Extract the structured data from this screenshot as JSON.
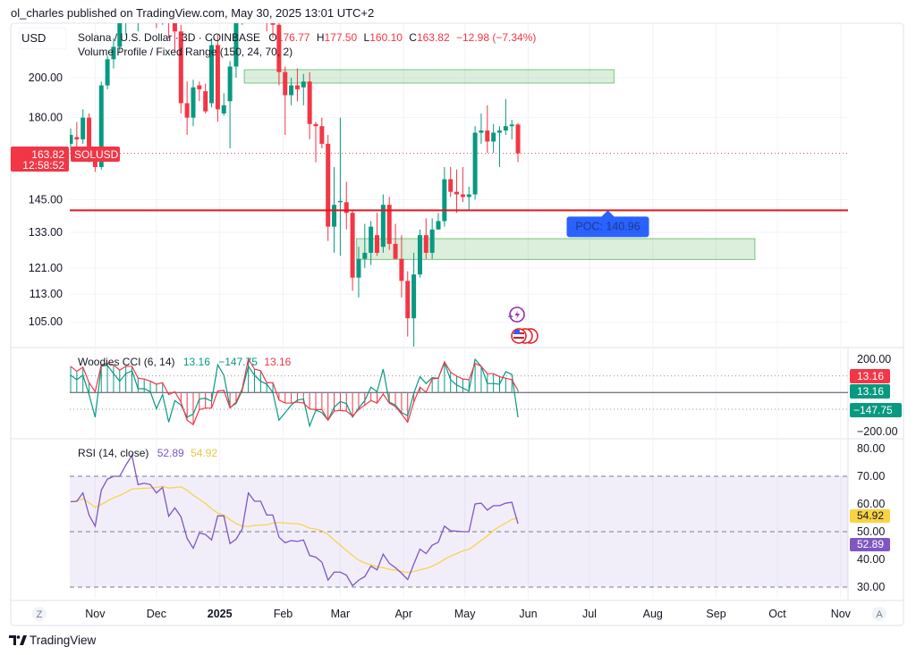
{
  "header": {
    "published": "ol_charles published on TradingView.com, May 30, 2025 13:01 UTC+2"
  },
  "currency_button": "USD",
  "legend": {
    "symbol": "Solana / U.S. Dollar · 3D · COINBASE",
    "o_label": "O",
    "o": "176.77",
    "h_label": "H",
    "h": "177.50",
    "l_label": "L",
    "l": "160.10",
    "c_label": "C",
    "c": "163.82",
    "change": "−12.98 (−7.34%)",
    "volume_profile": "Volume Profile / Fixed Range (150, 24, 70, 2)"
  },
  "price_axis": {
    "ticks": [
      "200.00",
      "180.00",
      "145.00",
      "133.00",
      "121.00",
      "113.00",
      "105.00"
    ],
    "scale": "log"
  },
  "last_price": {
    "price": "163.82",
    "countdown": "12:58:52",
    "symbol_tag": "SOLUSD"
  },
  "poc": {
    "label": "POC: 140.96",
    "value": 140.96,
    "anchor_date": "2025-07-10"
  },
  "zones": [
    {
      "from_date": "2025-01-13",
      "to_date": "2025-07-13",
      "low": 197.2,
      "high": 204.3
    },
    {
      "from_date": "2025-03-09",
      "to_date": "2025-09-20",
      "low": 123.8,
      "high": 130.8
    }
  ],
  "colors": {
    "up": "#089981",
    "down": "#f23645",
    "poc": "#e3161c",
    "zone": "#4caf50",
    "rsi": "#7e57c2",
    "rsi_ma": "#f5d44e",
    "poc_label": "#2962ff"
  },
  "cci": {
    "title": "Woodies CCI (6, 14)",
    "hist_value": "13.16",
    "turbo_value": "−147.75",
    "cci_value": "13.16",
    "axis_ticks": [
      "200.00",
      "−200.00"
    ],
    "tags": [
      "13.16",
      "13.16",
      "−147.75"
    ]
  },
  "rsi": {
    "title": "RSI (14, close)",
    "value": "52.89",
    "ma_value": "54.92",
    "ma_length": 14,
    "axis_ticks": [
      "80.00",
      "70.00",
      "60.00",
      "50.00",
      "40.00",
      "30.00"
    ],
    "bands": [
      30,
      50,
      70
    ]
  },
  "time_axis": {
    "left_button": "Z",
    "right_button": "A",
    "labels": [
      {
        "text": "Nov",
        "date": "2024-11-01"
      },
      {
        "text": "Dec",
        "date": "2024-12-01"
      },
      {
        "text": "2025",
        "date": "2025-01-01",
        "bold": true
      },
      {
        "text": "Feb",
        "date": "2025-02-01"
      },
      {
        "text": "Mar",
        "date": "2025-03-01"
      },
      {
        "text": "Apr",
        "date": "2025-04-01"
      },
      {
        "text": "May",
        "date": "2025-05-01"
      },
      {
        "text": "Jun",
        "date": "2025-06-01"
      },
      {
        "text": "Jul",
        "date": "2025-07-01"
      },
      {
        "text": "Aug",
        "date": "2025-08-01"
      },
      {
        "text": "Sep",
        "date": "2025-09-01"
      },
      {
        "text": "Oct",
        "date": "2025-10-01"
      },
      {
        "text": "Nov",
        "date": "2025-11-01"
      }
    ]
  },
  "footer": {
    "brand": "TradingView"
  },
  "icons": [
    "tradingview-logo-icon",
    "lightning-news-icon",
    "us-flag-events-icon"
  ],
  "chart_data": {
    "type": "candlestick",
    "interval": "3D",
    "y_scale": "log",
    "ohlc": {
      "o": [
        168,
        171,
        170,
        180,
        164,
        158,
        196,
        210,
        217,
        232,
        245,
        238,
        255,
        248,
        240,
        236,
        242,
        232,
        226,
        187,
        180,
        196,
        193,
        187,
        218,
        182,
        188,
        206,
        235,
        250,
        262,
        245,
        240,
        232,
        230,
        203,
        191,
        196,
        195,
        198,
        177,
        176,
        168,
        135,
        144,
        144,
        140,
        118,
        124,
        126,
        132,
        128,
        143,
        129,
        124,
        117,
        106,
        119,
        132,
        126,
        134,
        137,
        153,
        148,
        147,
        146,
        147,
        173,
        174,
        169,
        173,
        174,
        176,
        176.77
      ],
      "h": [
        175,
        178,
        184,
        182,
        166,
        198,
        212,
        222,
        236,
        248,
        262,
        258,
        264,
        256,
        252,
        248,
        246,
        240,
        230,
        198,
        199,
        198,
        197,
        222,
        224,
        192,
        209,
        238,
        255,
        268,
        295,
        262,
        250,
        246,
        234,
        206,
        200,
        205,
        202,
        203,
        178,
        180,
        172,
        158,
        180,
        152,
        141,
        128,
        136,
        137,
        140,
        147,
        146,
        136,
        132,
        120,
        126,
        134,
        138,
        138,
        140,
        158,
        158,
        157,
        158,
        150,
        176,
        182,
        186,
        177,
        176,
        189,
        179,
        177.5
      ],
      "l": [
        165,
        166,
        168,
        160,
        156,
        157,
        194,
        205,
        214,
        224,
        236,
        226,
        242,
        232,
        228,
        230,
        222,
        215,
        182,
        172,
        176,
        188,
        182,
        185,
        178,
        181,
        166,
        200,
        230,
        244,
        250,
        238,
        226,
        222,
        196,
        172,
        186,
        188,
        186,
        170,
        160,
        166,
        130,
        126,
        125,
        134,
        114,
        112,
        121,
        122,
        125,
        126,
        127,
        124,
        112,
        101,
        97,
        118,
        124,
        124,
        134,
        135,
        146,
        140,
        144,
        141,
        145,
        168,
        164,
        164,
        158,
        172,
        170,
        160.1
      ],
      "c": [
        172,
        170,
        180,
        164,
        158,
        196,
        210,
        217,
        232,
        245,
        238,
        255,
        248,
        240,
        236,
        242,
        232,
        226,
        187,
        180,
        195,
        194,
        183,
        218,
        184,
        186,
        206,
        235,
        250,
        262,
        245,
        240,
        232,
        230,
        203,
        191,
        196,
        194,
        198,
        177,
        176,
        168,
        135,
        143,
        144.5,
        140,
        118,
        124,
        126,
        135,
        126,
        143,
        129,
        124,
        117,
        106,
        119,
        132,
        126,
        134,
        137,
        153,
        148,
        147,
        146,
        147,
        173,
        174,
        169,
        173,
        174,
        176,
        176.77,
        163.82
      ]
    },
    "cci14": [
      157,
      127,
      152,
      59,
      5,
      166,
      175,
      166,
      134,
      157,
      157,
      86,
      81,
      68,
      50,
      59,
      -12,
      5,
      -57,
      -165,
      -192,
      -102,
      -93,
      -93,
      9,
      14,
      -93,
      -57,
      23,
      202,
      140,
      131,
      59,
      59,
      -45,
      -63,
      -63,
      -57,
      -63,
      -98,
      -102,
      -102,
      -165,
      -111,
      -107,
      -111,
      -141,
      -102,
      -75,
      -48,
      -63,
      -9,
      -63,
      -84,
      -129,
      -177,
      -57,
      32,
      2,
      81,
      86,
      184,
      122,
      98,
      81,
      77,
      175,
      157,
      113,
      113,
      95,
      86,
      77,
      13.16
    ],
    "turbo_cci6": [
      104,
      77,
      104,
      -12,
      -147,
      157,
      163,
      113,
      68,
      113,
      131,
      23,
      23,
      5,
      -97,
      -12,
      -177,
      -48,
      -75,
      -147,
      -129,
      -39,
      -34,
      -52,
      166,
      104,
      -88,
      -66,
      14,
      157,
      104,
      68,
      50,
      0,
      -165,
      -120,
      -75,
      -45,
      -39,
      -200,
      -106,
      -120,
      -165,
      -88,
      -54,
      -66,
      -147,
      -93,
      -48,
      32,
      5,
      140,
      -57,
      -75,
      -120,
      -138,
      -4,
      95,
      54,
      89,
      86,
      179,
      77,
      45,
      27,
      9,
      199,
      157,
      54,
      54,
      50,
      125,
      109,
      -147.75
    ],
    "cci_range": [
      -200,
      200
    ],
    "rsi14": [
      60.8,
      61,
      64,
      56,
      52,
      65,
      69,
      70,
      70,
      74,
      77.5,
      67,
      67.5,
      67,
      64,
      66,
      55.6,
      58.6,
      55.4,
      47.6,
      44,
      49.5,
      49,
      47,
      55.7,
      55.7,
      45.7,
      47.3,
      51,
      64,
      61,
      61,
      56,
      56,
      48,
      46,
      46.8,
      46.5,
      47,
      41.4,
      40.8,
      39,
      32.5,
      35.4,
      35.4,
      34.3,
      30.5,
      32.5,
      33.8,
      37.6,
      36.2,
      41.9,
      38.6,
      37,
      35,
      32.7,
      38.3,
      43.7,
      42.1,
      45.1,
      46.2,
      52,
      50.3,
      50.2,
      50,
      50,
      60,
      60.3,
      57.8,
      59.4,
      59.4,
      60.3,
      60.6,
      52.89
    ],
    "rsi_range": [
      25,
      85
    ]
  }
}
